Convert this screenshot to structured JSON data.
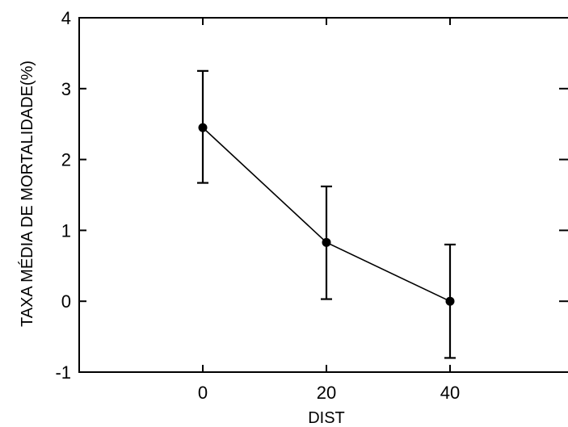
{
  "chart_data": {
    "type": "line",
    "title": "",
    "xlabel": "DIST",
    "ylabel": "TAXA MÉDIA DE MORTALIDADE(%)",
    "xlim": [
      -20,
      60
    ],
    "ylim": [
      -1,
      4
    ],
    "xticks": [
      0,
      20,
      40
    ],
    "yticks": [
      -1,
      0,
      1,
      2,
      3,
      4
    ],
    "grid": false,
    "legend": "none",
    "series": [
      {
        "x": [
          0,
          20,
          40
        ],
        "y": [
          2.45,
          0.83,
          0.0
        ],
        "error_lower": [
          1.67,
          0.03,
          -0.8
        ],
        "error_upper": [
          3.25,
          1.62,
          0.8
        ]
      }
    ]
  }
}
